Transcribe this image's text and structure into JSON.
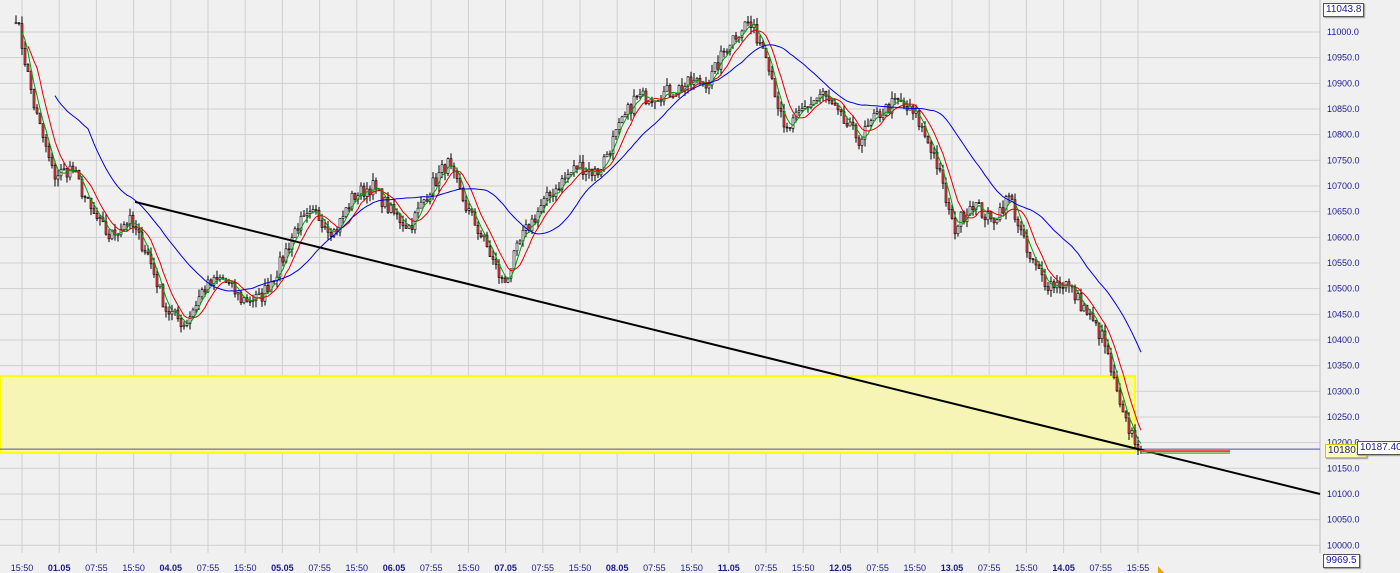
{
  "chart_data": {
    "type": "candlestick",
    "x_tick_labels": [
      "15:50",
      "01.05",
      "07:55",
      "15:50",
      "04.05",
      "07:55",
      "15:50",
      "05.05",
      "07:55",
      "15:50",
      "06.05",
      "07:55",
      "15:50",
      "07.05",
      "07:55",
      "15:50",
      "08.05",
      "07:55",
      "15:50",
      "11.05",
      "07:55",
      "15:50",
      "12.05",
      "07:55",
      "15:50",
      "13.05",
      "07:55",
      "15:50",
      "14.05",
      "07:55",
      "15:55"
    ],
    "date_labels": [
      "01.05",
      "04.05",
      "05.05",
      "06.05",
      "07.05",
      "08.05",
      "11.05",
      "12.05",
      "13.05",
      "14.05"
    ],
    "y_ticks": [
      11000,
      10950,
      10900,
      10850,
      10800,
      10750,
      10700,
      10650,
      10600,
      10550,
      10500,
      10450,
      10400,
      10350,
      10300,
      10250,
      10200,
      10150,
      10100,
      10050,
      10000
    ],
    "ylim": [
      9969.5,
      11043.8
    ],
    "approx_closes": [
      11033,
      10850,
      10720,
      10735,
      10650,
      10600,
      10635,
      10570,
      10460,
      10430,
      10500,
      10520,
      10480,
      10480,
      10540,
      10624,
      10645,
      10610,
      10680,
      10700,
      10650,
      10620,
      10690,
      10745,
      10660,
      10590,
      10507,
      10600,
      10660,
      10705,
      10740,
      10725,
      10800,
      10870,
      10877,
      10885,
      10900,
      10905,
      10980,
      11020,
      10965,
      10800,
      10850,
      10880,
      10830,
      10790,
      10840,
      10865,
      10835,
      10760,
      10614,
      10670,
      10630,
      10680,
      10560,
      10510,
      10510,
      10460,
      10400,
      10250,
      10187
    ],
    "moving_averages": [
      {
        "color": "#e00000",
        "type": "fast"
      },
      {
        "color": "#00a000",
        "type": "faster"
      },
      {
        "color": "#0000e0",
        "type": "slow"
      }
    ],
    "trendline": {
      "from_price": 10669,
      "to_price": 10100,
      "color": "#000000"
    },
    "zone": {
      "top": 10330,
      "bottom": 10180,
      "fill": "#f7f5b5",
      "border": "#ffff00"
    },
    "current_price_line": 10187.4,
    "labels": {
      "max": "11043.8",
      "min": "9969.5",
      "zone_bottom": "10180.4",
      "last": "10187.40"
    },
    "colors": {
      "up": "#ffffff",
      "down": "#ff4040",
      "grid": "#d0d0d0",
      "axis_text": "#1a1a8c"
    }
  }
}
